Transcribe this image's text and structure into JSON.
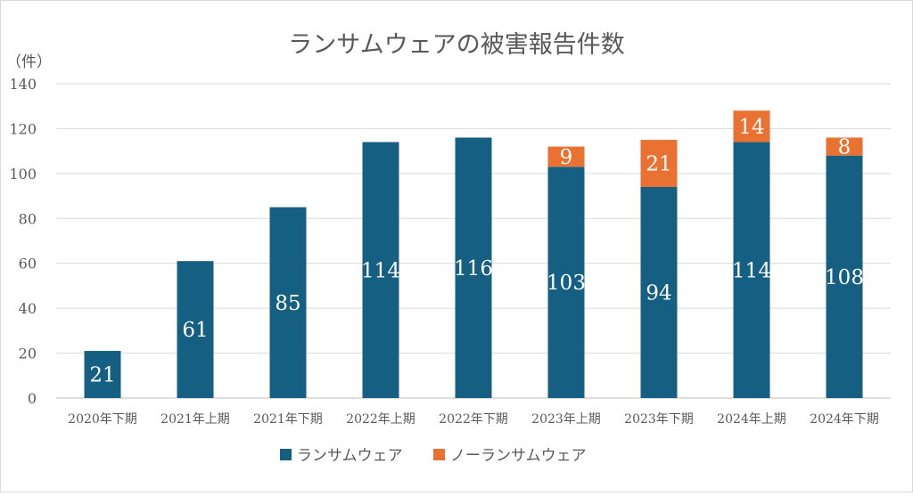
{
  "chart_data": {
    "type": "bar",
    "stacked": true,
    "title": "ランサムウェアの被害報告件数",
    "ylabel": "（件）",
    "xlabel": "",
    "ylim": [
      0,
      140
    ],
    "yticks": [
      0,
      20,
      40,
      60,
      80,
      100,
      120,
      140
    ],
    "grid": true,
    "legend_position": "bottom",
    "categories": [
      "2020年下期",
      "2021年上期",
      "2021年下期",
      "2022年上期",
      "2022年下期",
      "2023年上期",
      "2023年下期",
      "2024年上期",
      "2024年下期"
    ],
    "series": [
      {
        "name": "ランサムウェア",
        "color": "#156082",
        "values": [
          21,
          61,
          85,
          114,
          116,
          103,
          94,
          114,
          108
        ]
      },
      {
        "name": "ノーランサムウェア",
        "color": "#e97132",
        "values": [
          null,
          null,
          null,
          null,
          null,
          9,
          21,
          14,
          8
        ]
      }
    ]
  }
}
